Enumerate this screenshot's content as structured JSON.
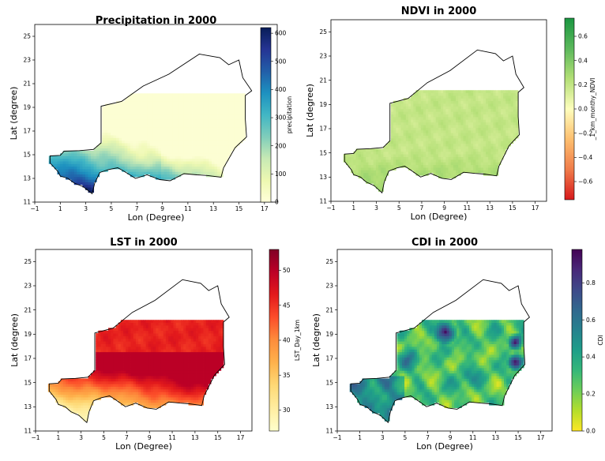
{
  "panels": [
    {
      "title": "Precipitation in 2000",
      "xlabel": "Lon (Degree)",
      "ylabel": "Lat (degree)",
      "colorbar_label": "precipitation",
      "colorbar_ticks": [
        "0",
        "100",
        "200",
        "300",
        "400",
        "500",
        "600"
      ],
      "colormap": [
        "#ffffd9",
        "#edf8b1",
        "#c7e9b4",
        "#7fcdbb",
        "#41b6c4",
        "#1d91c0",
        "#225ea8",
        "#253494",
        "#081d58"
      ],
      "cb_min": 0,
      "cb_max": 620
    },
    {
      "title": "NDVI in 2000",
      "xlabel": "Lon (Degree)",
      "ylabel": "Lat (degree)",
      "colorbar_label": "_1_km_monthy_NDVI",
      "colorbar_ticks": [
        "-0.6",
        "-0.4",
        "-0.2",
        "0.0",
        "0.2",
        "0.4",
        "0.6"
      ],
      "colormap": [
        "#d7191c",
        "#f07c4a",
        "#fdbf6f",
        "#fefebd",
        "#b3df76",
        "#5bb85b",
        "#1a9641"
      ],
      "cb_min": -0.75,
      "cb_max": 0.75
    },
    {
      "title": "LST in 2000",
      "xlabel": "Lon (Degree)",
      "ylabel": "Lat (degree)",
      "colorbar_label": "LST_Day_1km",
      "colorbar_ticks": [
        "30",
        "35",
        "40",
        "45",
        "50"
      ],
      "colormap": [
        "#ffffcc",
        "#ffeda0",
        "#fed976",
        "#feb24c",
        "#fd8d3c",
        "#fc4e2a",
        "#e31a1c",
        "#bd0026",
        "#800026"
      ],
      "cb_min": 27,
      "cb_max": 53
    },
    {
      "title": "CDI in 2000",
      "xlabel": "Lon (Degree)",
      "ylabel": "Lat (degree)",
      "colorbar_label": "CDI",
      "colorbar_ticks": [
        "0.0",
        "0.2",
        "0.4",
        "0.6",
        "0.8"
      ],
      "colormap": [
        "#fde725",
        "#b5de2b",
        "#6ece58",
        "#35b779",
        "#1f9e89",
        "#26828e",
        "#31688e",
        "#3e4989",
        "#482878",
        "#440154"
      ],
      "cb_min": 0,
      "cb_max": 0.98
    }
  ],
  "chart_data": [
    {
      "type": "heatmap",
      "title": "Precipitation in 2000",
      "xlabel": "Lon (Degree)",
      "ylabel": "Lat (degree)",
      "xlim": [
        -1,
        18
      ],
      "ylim": [
        11,
        26
      ],
      "xticks": [
        -1,
        1,
        3,
        5,
        7,
        9,
        11,
        13,
        15,
        17
      ],
      "yticks": [
        11,
        13,
        15,
        17,
        19,
        21,
        23,
        25
      ],
      "colorbar": {
        "label": "precipitation",
        "range": [
          0,
          620
        ],
        "ticks": [
          0,
          100,
          200,
          300,
          400,
          500,
          600
        ]
      }
    },
    {
      "type": "heatmap",
      "title": "NDVI in 2000",
      "xlabel": "Lon (Degree)",
      "ylabel": "Lat (degree)",
      "xlim": [
        -1,
        18
      ],
      "ylim": [
        11,
        26
      ],
      "xticks": [
        -1,
        1,
        3,
        5,
        7,
        9,
        11,
        13,
        15,
        17
      ],
      "yticks": [
        11,
        13,
        15,
        17,
        19,
        21,
        23,
        25
      ],
      "colorbar": {
        "label": "_1_km_monthy_NDVI",
        "range": [
          -0.75,
          0.75
        ],
        "ticks": [
          -0.6,
          -0.4,
          -0.2,
          0.0,
          0.2,
          0.4,
          0.6
        ]
      }
    },
    {
      "type": "heatmap",
      "title": "LST in 2000",
      "xlabel": "Lon (Degree)",
      "ylabel": "Lat (degree)",
      "xlim": [
        -1,
        18
      ],
      "ylim": [
        11,
        26
      ],
      "xticks": [
        -1,
        1,
        3,
        5,
        7,
        9,
        11,
        13,
        15,
        17
      ],
      "yticks": [
        11,
        13,
        15,
        17,
        19,
        21,
        23,
        25
      ],
      "colorbar": {
        "label": "LST_Day_1km",
        "range": [
          27,
          53
        ],
        "ticks": [
          30,
          35,
          40,
          45,
          50
        ]
      }
    },
    {
      "type": "heatmap",
      "title": "CDI in 2000",
      "xlabel": "Lon (Degree)",
      "ylabel": "Lat (degree)",
      "xlim": [
        -1,
        18
      ],
      "ylim": [
        11,
        26
      ],
      "xticks": [
        -1,
        1,
        3,
        5,
        7,
        9,
        11,
        13,
        15,
        17
      ],
      "yticks": [
        11,
        13,
        15,
        17,
        19,
        21,
        23,
        25
      ],
      "colorbar": {
        "label": "CDI",
        "range": [
          0,
          0.98
        ],
        "ticks": [
          0.0,
          0.2,
          0.4,
          0.6,
          0.8
        ]
      }
    }
  ]
}
